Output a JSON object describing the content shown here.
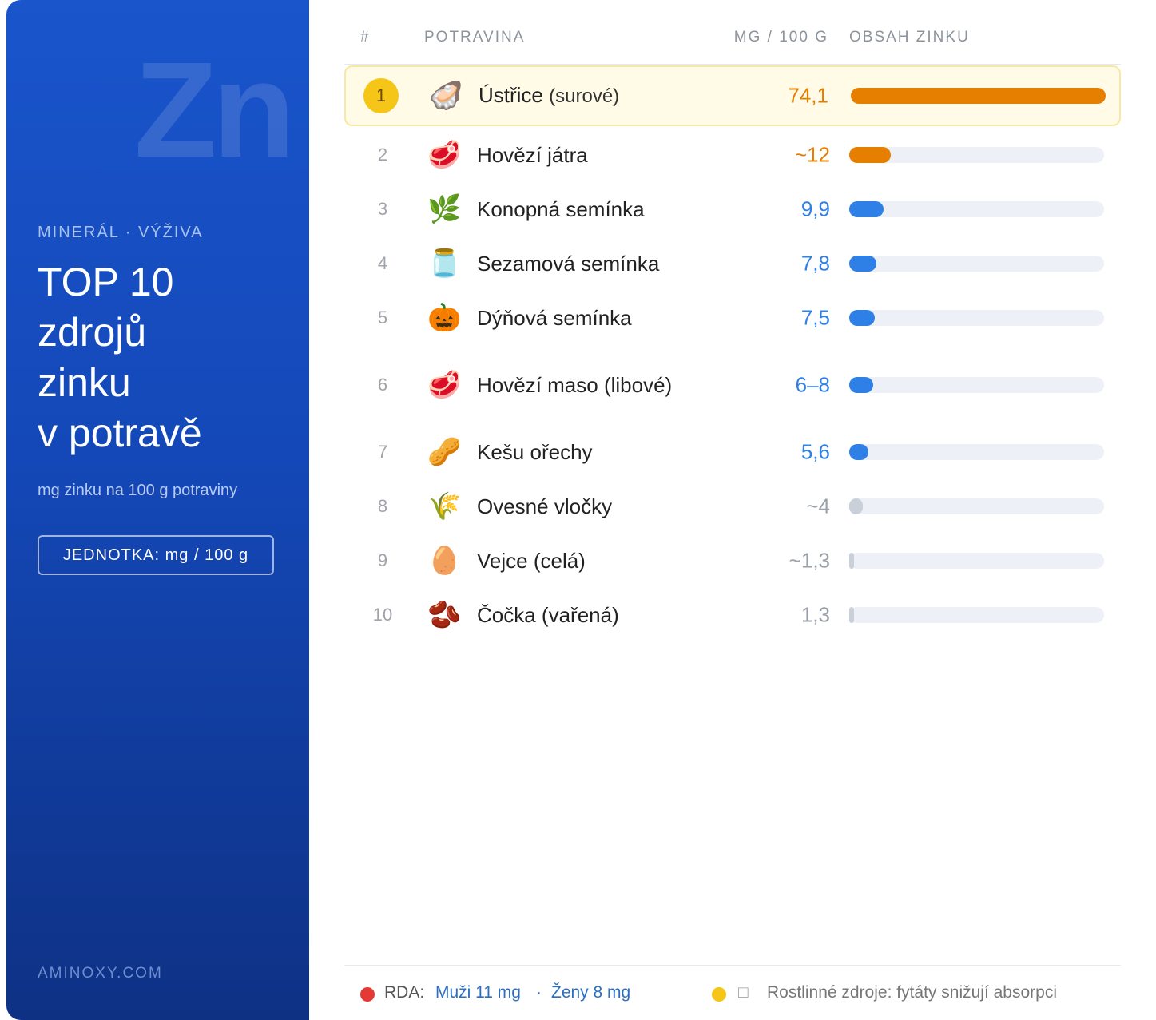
{
  "sidebar": {
    "watermark": "Zn",
    "eyebrow": "MINERÁL · VÝŽIVA",
    "title_lines": [
      "TOP 10",
      "zdrojů",
      "zinku",
      "v potravě"
    ],
    "subtitle": "mg zinku na 100 g potraviny",
    "badge": "JEDNOTKA: mg / 100 g",
    "footer": "AMINOXY.COM"
  },
  "table": {
    "columns": [
      "#",
      "POTRAVINA",
      "MG / 100 G",
      "OBSAH ZINKU"
    ],
    "rows": [
      {
        "rank": 1,
        "icon": "🦪",
        "name": "Ústřice",
        "note": "(surové)",
        "value": 74.1,
        "value_label": "74,1",
        "color": "#e67e00"
      },
      {
        "rank": 2,
        "icon": "🥩",
        "name": "Hovězí játra",
        "value": 12,
        "value_label": "~12",
        "color": "#e67e00"
      },
      {
        "rank": 3,
        "icon": "🌿",
        "name": "Konopná semínka",
        "value": 9.9,
        "value_label": "9,9",
        "color": "#2f80e6"
      },
      {
        "rank": 4,
        "icon": "🫙",
        "name": "Sezamová semínka",
        "value": 7.8,
        "value_label": "7,8",
        "color": "#2f80e6"
      },
      {
        "rank": 5,
        "icon": "🎃",
        "name": "Dýňová semínka",
        "value": 7.5,
        "value_label": "7,5",
        "color": "#2f80e6"
      },
      {
        "rank": 6,
        "icon": "🥩",
        "name": "Hovězí maso (libové)",
        "value": 7,
        "value_label": "6–8",
        "color": "#2f80e6"
      },
      {
        "rank": 7,
        "icon": "🥜",
        "name": "Kešu ořechy",
        "value": 5.6,
        "value_label": "5,6",
        "color": "#2f80e6"
      },
      {
        "rank": 8,
        "icon": "🌾",
        "name": "Ovesné vločky",
        "value": 4,
        "value_label": "~4",
        "color": "#c9d0da"
      },
      {
        "rank": 9,
        "icon": "🥚",
        "name": "Vejce (celá)",
        "value": 1.3,
        "value_label": "~1,3",
        "color": "#c9d0da"
      },
      {
        "rank": 10,
        "icon": "🫘",
        "name": "Čočka (vařená)",
        "value": 1.3,
        "value_label": "1,3",
        "color": "#c9d0da"
      }
    ]
  },
  "footer": {
    "rda_label": "RDA:",
    "men": "Muži 11 mg",
    "separator": "·",
    "women": "Ženy 8 mg",
    "box": "□",
    "note": "Rostlinné zdroje: fytáty snižují absorpci"
  }
}
